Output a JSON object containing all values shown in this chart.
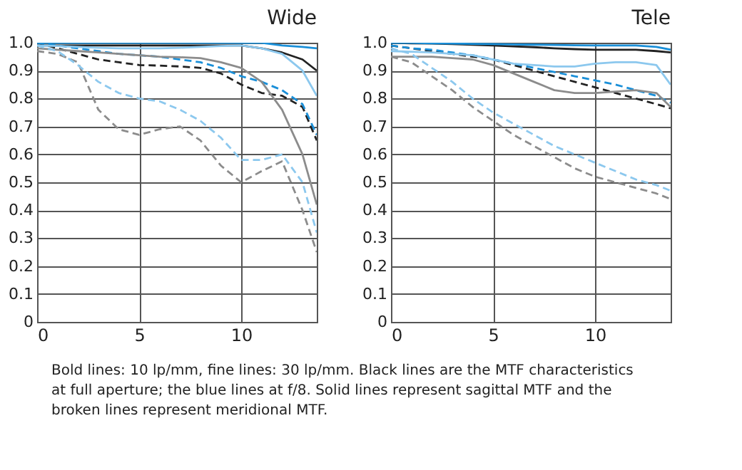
{
  "chart_data": [
    {
      "type": "line",
      "title": "Wide",
      "xlim": [
        0,
        13.7
      ],
      "xticks": [
        0,
        5,
        10
      ],
      "ylim": [
        0,
        1
      ],
      "yticks": [
        0,
        0.1,
        0.2,
        0.3,
        0.4,
        0.5,
        0.6,
        0.7,
        0.8,
        0.9,
        {
          "value": 1,
          "label": "1.0"
        }
      ],
      "grid": true,
      "marker": "none",
      "x": [
        0,
        1,
        2,
        3,
        4,
        5,
        6,
        7,
        8,
        9,
        10,
        11,
        12,
        13,
        13.7
      ],
      "series": [
        {
          "color": "#222222",
          "line_style": "solid",
          "values": [
            0.99,
            0.99,
            0.99,
            0.99,
            0.99,
            0.99,
            0.99,
            0.99,
            0.99,
            0.99,
            0.99,
            0.98,
            0.965,
            0.94,
            0.9
          ]
        },
        {
          "color": "#1a8fd8",
          "line_style": "solid",
          "values": [
            1.0,
            1.0,
            1.0,
            1.0,
            1.0,
            1.0,
            1.0,
            1.0,
            1.0,
            1.0,
            1.0,
            1.0,
            0.99,
            0.985,
            0.98
          ]
        },
        {
          "color": "#222222",
          "line_style": "dashed",
          "values": [
            1.0,
            0.98,
            0.96,
            0.94,
            0.93,
            0.92,
            0.918,
            0.915,
            0.91,
            0.89,
            0.85,
            0.82,
            0.81,
            0.77,
            0.65
          ]
        },
        {
          "color": "#1a8fd8",
          "line_style": "dashed",
          "values": [
            1.0,
            0.99,
            0.98,
            0.97,
            0.96,
            0.955,
            0.95,
            0.94,
            0.93,
            0.91,
            0.88,
            0.86,
            0.83,
            0.78,
            0.67
          ]
        },
        {
          "color": "#8c8c8c",
          "line_style": "solid",
          "values": [
            0.98,
            0.975,
            0.97,
            0.965,
            0.96,
            0.955,
            0.95,
            0.948,
            0.945,
            0.93,
            0.91,
            0.86,
            0.76,
            0.6,
            0.42
          ]
        },
        {
          "color": "#8cc8ee",
          "line_style": "solid",
          "values": [
            0.99,
            0.988,
            0.985,
            0.982,
            0.98,
            0.98,
            0.98,
            0.982,
            0.985,
            0.988,
            0.99,
            0.98,
            0.96,
            0.9,
            0.81
          ]
        },
        {
          "color": "#8c8c8c",
          "line_style": "dashed",
          "values": [
            0.97,
            0.96,
            0.93,
            0.76,
            0.69,
            0.67,
            0.69,
            0.7,
            0.65,
            0.56,
            0.5,
            0.54,
            0.575,
            0.4,
            0.25
          ]
        },
        {
          "color": "#8cc8ee",
          "line_style": "dashed",
          "values": [
            0.99,
            0.97,
            0.92,
            0.86,
            0.82,
            0.8,
            0.79,
            0.76,
            0.72,
            0.66,
            0.58,
            0.58,
            0.6,
            0.5,
            0.32
          ]
        }
      ]
    },
    {
      "type": "line",
      "title": "Tele",
      "xlim": [
        0,
        13.7
      ],
      "xticks": [
        0,
        5,
        10
      ],
      "ylim": [
        0,
        1
      ],
      "yticks": [
        0,
        0.1,
        0.2,
        0.3,
        0.4,
        0.5,
        0.6,
        0.7,
        0.8,
        0.9,
        {
          "value": 1,
          "label": "1.0"
        }
      ],
      "grid": true,
      "marker": "none",
      "x": [
        0,
        1,
        2,
        3,
        4,
        5,
        6,
        7,
        8,
        9,
        10,
        11,
        12,
        13,
        13.7
      ],
      "series": [
        {
          "color": "#222222",
          "line_style": "solid",
          "values": [
            1.0,
            0.998,
            0.997,
            0.995,
            0.993,
            0.99,
            0.987,
            0.984,
            0.98,
            0.977,
            0.975,
            0.975,
            0.975,
            0.97,
            0.965
          ]
        },
        {
          "color": "#1a8fd8",
          "line_style": "solid",
          "values": [
            1.0,
            1.0,
            0.998,
            0.997,
            0.996,
            0.995,
            0.994,
            0.993,
            0.992,
            0.991,
            0.99,
            0.99,
            0.99,
            0.985,
            0.975
          ]
        },
        {
          "color": "#222222",
          "line_style": "dashed",
          "values": [
            0.99,
            0.98,
            0.97,
            0.96,
            0.95,
            0.94,
            0.92,
            0.9,
            0.88,
            0.86,
            0.84,
            0.82,
            0.8,
            0.78,
            0.765
          ]
        },
        {
          "color": "#1a8fd8",
          "line_style": "dashed",
          "values": [
            0.99,
            0.98,
            0.975,
            0.965,
            0.955,
            0.94,
            0.925,
            0.91,
            0.895,
            0.88,
            0.865,
            0.85,
            0.83,
            0.81,
            0.785
          ]
        },
        {
          "color": "#8c8c8c",
          "line_style": "solid",
          "values": [
            0.95,
            0.95,
            0.95,
            0.945,
            0.94,
            0.92,
            0.89,
            0.86,
            0.83,
            0.82,
            0.82,
            0.825,
            0.83,
            0.82,
            0.77
          ]
        },
        {
          "color": "#8cc8ee",
          "line_style": "solid",
          "values": [
            0.97,
            0.968,
            0.965,
            0.96,
            0.955,
            0.94,
            0.925,
            0.92,
            0.915,
            0.915,
            0.925,
            0.93,
            0.93,
            0.92,
            0.85
          ]
        },
        {
          "color": "#8c8c8c",
          "line_style": "dashed",
          "values": [
            0.95,
            0.93,
            0.88,
            0.83,
            0.77,
            0.72,
            0.67,
            0.63,
            0.59,
            0.55,
            0.52,
            0.5,
            0.48,
            0.46,
            0.44
          ]
        },
        {
          "color": "#8cc8ee",
          "line_style": "dashed",
          "values": [
            0.98,
            0.96,
            0.91,
            0.86,
            0.8,
            0.75,
            0.71,
            0.67,
            0.63,
            0.6,
            0.57,
            0.54,
            0.51,
            0.49,
            0.47
          ]
        }
      ]
    },
    {
      "type": "other",
      "annotations": [
        "Bold lines: 10 lp/mm, fine lines: 30 lp/mm. Black lines are the MTF characteristics at full aperture; the blue lines at f/8. Solid lines represent sagittal MTF and the broken lines represent meridional MTF."
      ]
    }
  ]
}
